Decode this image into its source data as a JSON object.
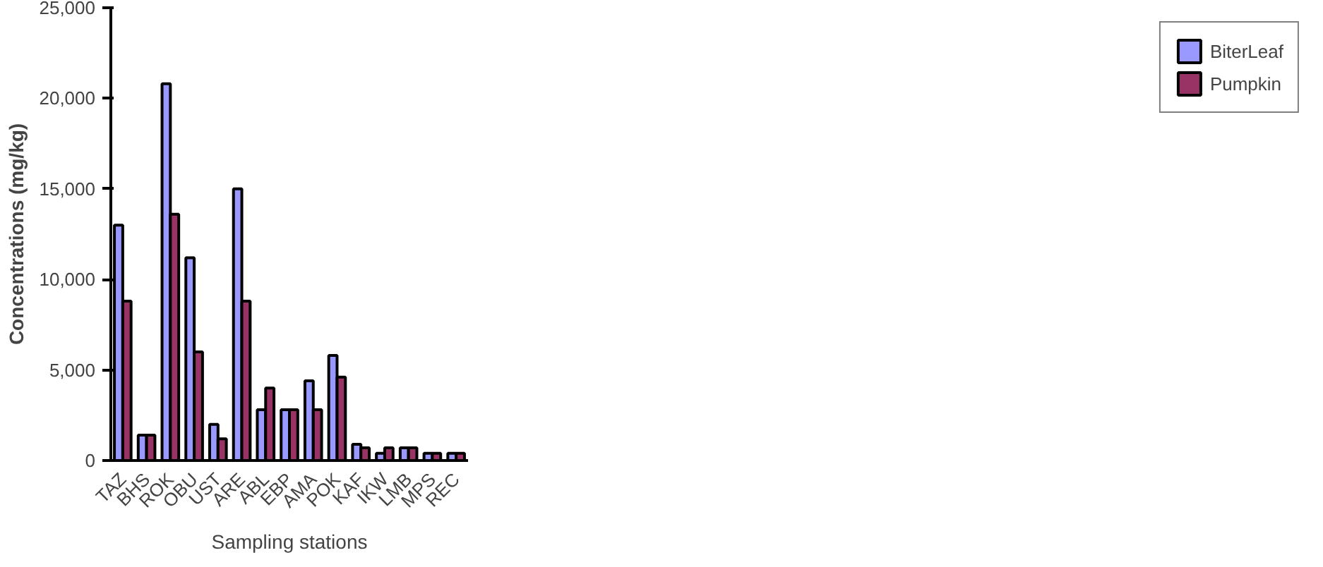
{
  "chart_data": {
    "type": "bar",
    "xlabel": "Sampling stations",
    "ylabel": "Concentrations (mg/kg)",
    "categories": [
      "TAZ",
      "BHS",
      "ROK",
      "OBU",
      "UST",
      "ARE",
      "ABL",
      "EBP",
      "AMA",
      "POK",
      "KAF",
      "IKW",
      "LMB",
      "MPS",
      "REC"
    ],
    "series": [
      {
        "name": "BiterLeaf",
        "color": "#9999ff",
        "values": [
          13000,
          1400,
          20800,
          11200,
          2000,
          15000,
          2800,
          2800,
          4400,
          5800,
          900,
          400,
          700,
          400,
          400
        ]
      },
      {
        "name": "Pumpkin",
        "color": "#993366",
        "values": [
          8800,
          1400,
          13600,
          6000,
          1200,
          8800,
          4000,
          2800,
          2800,
          4600,
          700,
          700,
          700,
          400,
          400
        ]
      }
    ],
    "ylim": [
      0,
      25000
    ],
    "yticks": [
      {
        "value": 0,
        "label": "0"
      },
      {
        "value": 5000,
        "label": "5,000"
      },
      {
        "value": 10000,
        "label": "10,000"
      },
      {
        "value": 15000,
        "label": "15,000"
      },
      {
        "value": 20000,
        "label": "20,000"
      },
      {
        "value": 25000,
        "label": "25,000"
      }
    ],
    "grid": false,
    "legend": "right"
  }
}
